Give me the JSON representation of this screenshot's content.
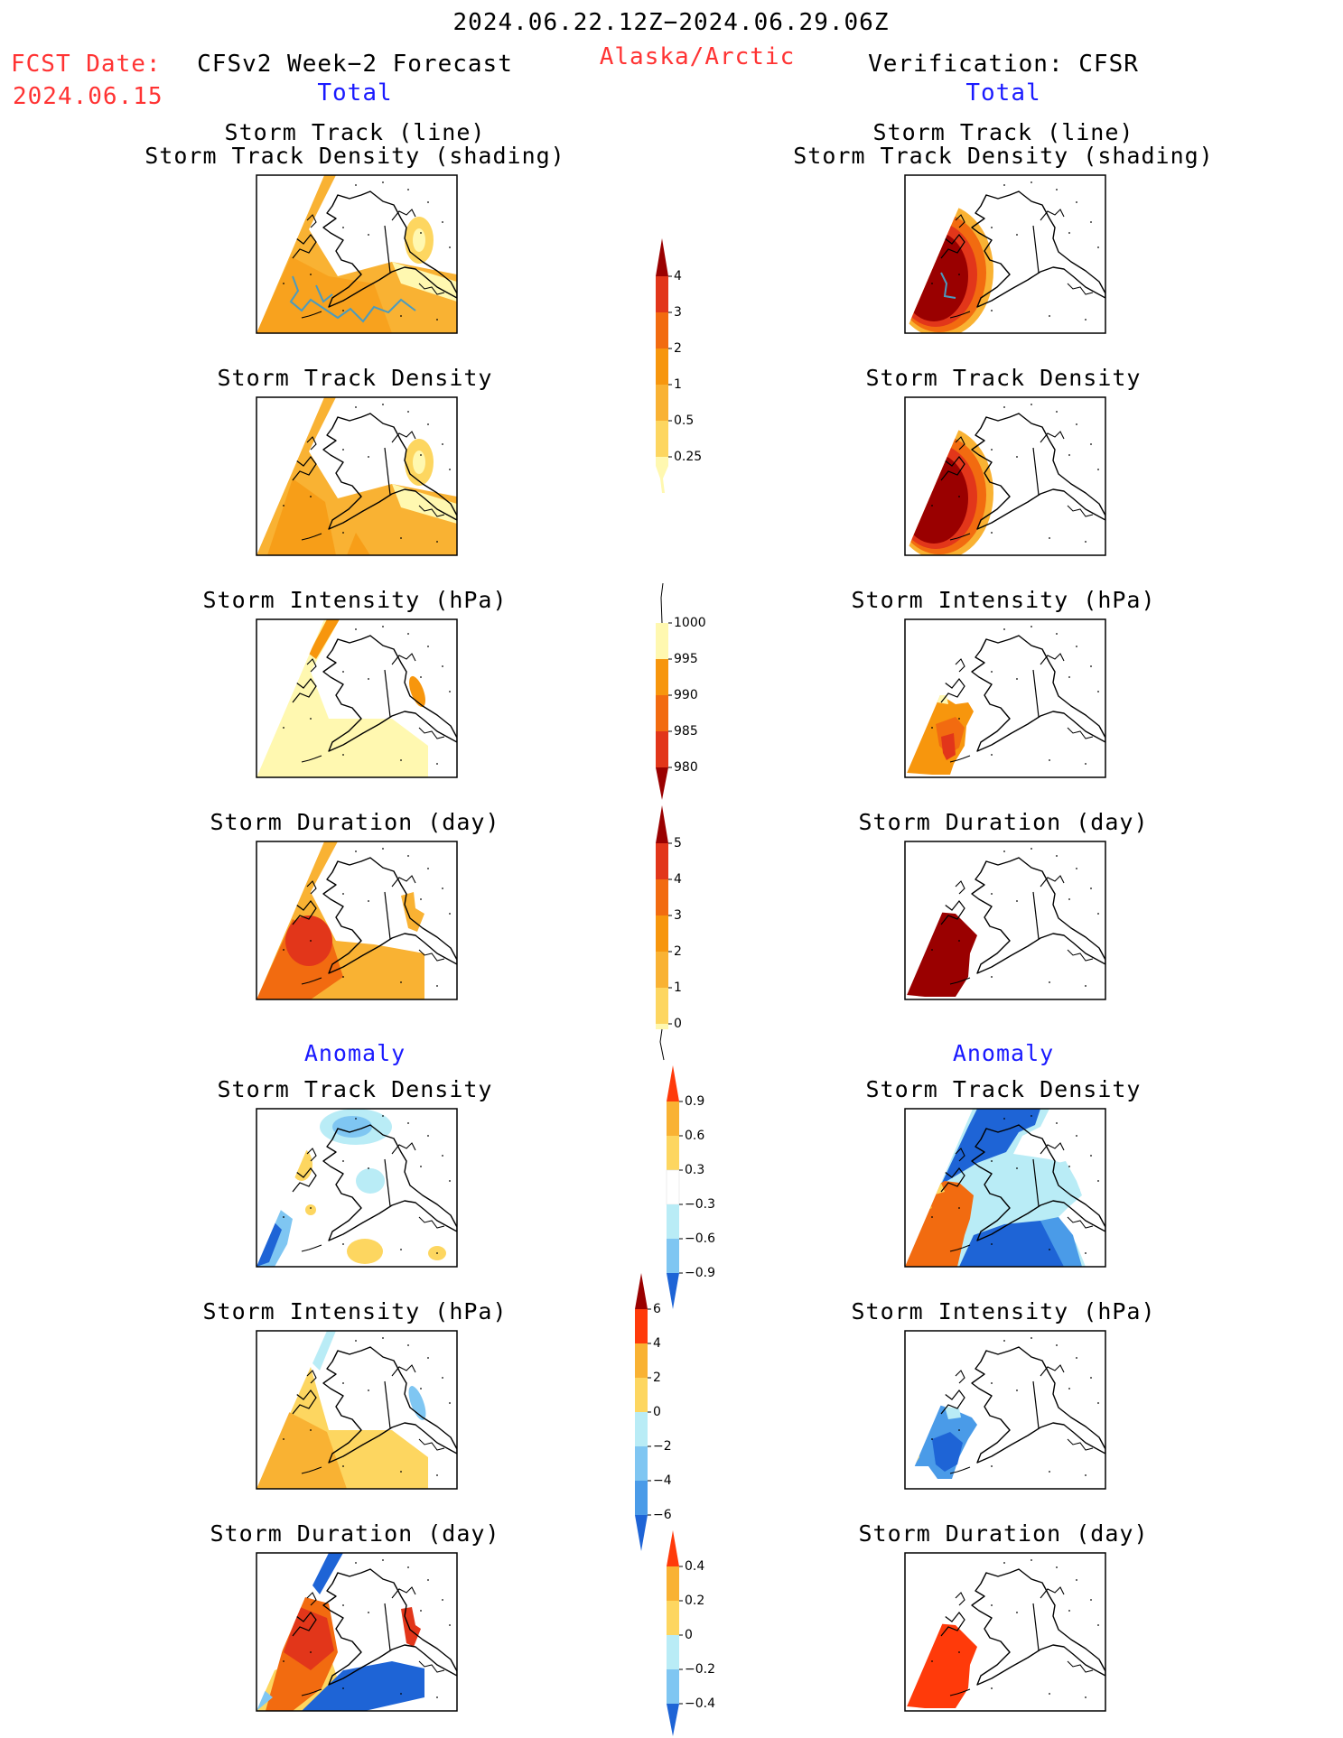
{
  "header": {
    "date_range": "2024.06.22.12Z−2024.06.29.06Z",
    "region": "Alaska/Arctic",
    "fcst_label": "FCST Date:",
    "fcst_date": "2024.06.15",
    "left_title": "CFSv2 Week−2 Forecast",
    "right_title": "Verification: CFSR",
    "total_label": "Total",
    "anomaly_label": "Anomaly"
  },
  "panel_titles": {
    "storm_track_line": "Storm Track (line)",
    "storm_track_density_shading": "Storm Track Density (shading)",
    "storm_track_density": "Storm Track Density",
    "storm_intensity": "Storm Intensity (hPa)",
    "storm_duration": "Storm Duration (day)"
  },
  "colors": {
    "c1": "#fff8b0",
    "c2": "#fdd660",
    "c3": "#f9b233",
    "c4": "#f7960d",
    "c5": "#f26b10",
    "c6": "#e2361a",
    "c7": "#9a0000",
    "b1": "#b9ecf6",
    "b2": "#7fc6f2",
    "b3": "#4a9be8",
    "b4": "#1e64d6",
    "track": "#4a9bc0"
  },
  "colorbars": [
    {
      "name": "density-total",
      "labels": [
        "4",
        "3",
        "2",
        "1",
        "0.5",
        "0.25"
      ]
    },
    {
      "name": "intensity-total",
      "labels": [
        "1000",
        "995",
        "990",
        "985",
        "980"
      ]
    },
    {
      "name": "duration-total",
      "labels": [
        "5",
        "4",
        "3",
        "2",
        "1",
        "0"
      ]
    },
    {
      "name": "density-anomaly",
      "labels": [
        "0.9",
        "0.6",
        "0.3",
        "−0.3",
        "−0.6",
        "−0.9"
      ]
    },
    {
      "name": "intensity-anomaly",
      "labels": [
        "6",
        "4",
        "2",
        "0",
        "−2",
        "−4",
        "−6"
      ]
    },
    {
      "name": "duration-anomaly",
      "labels": [
        "0.4",
        "0.2",
        "0",
        "−0.2",
        "−0.4"
      ]
    }
  ]
}
